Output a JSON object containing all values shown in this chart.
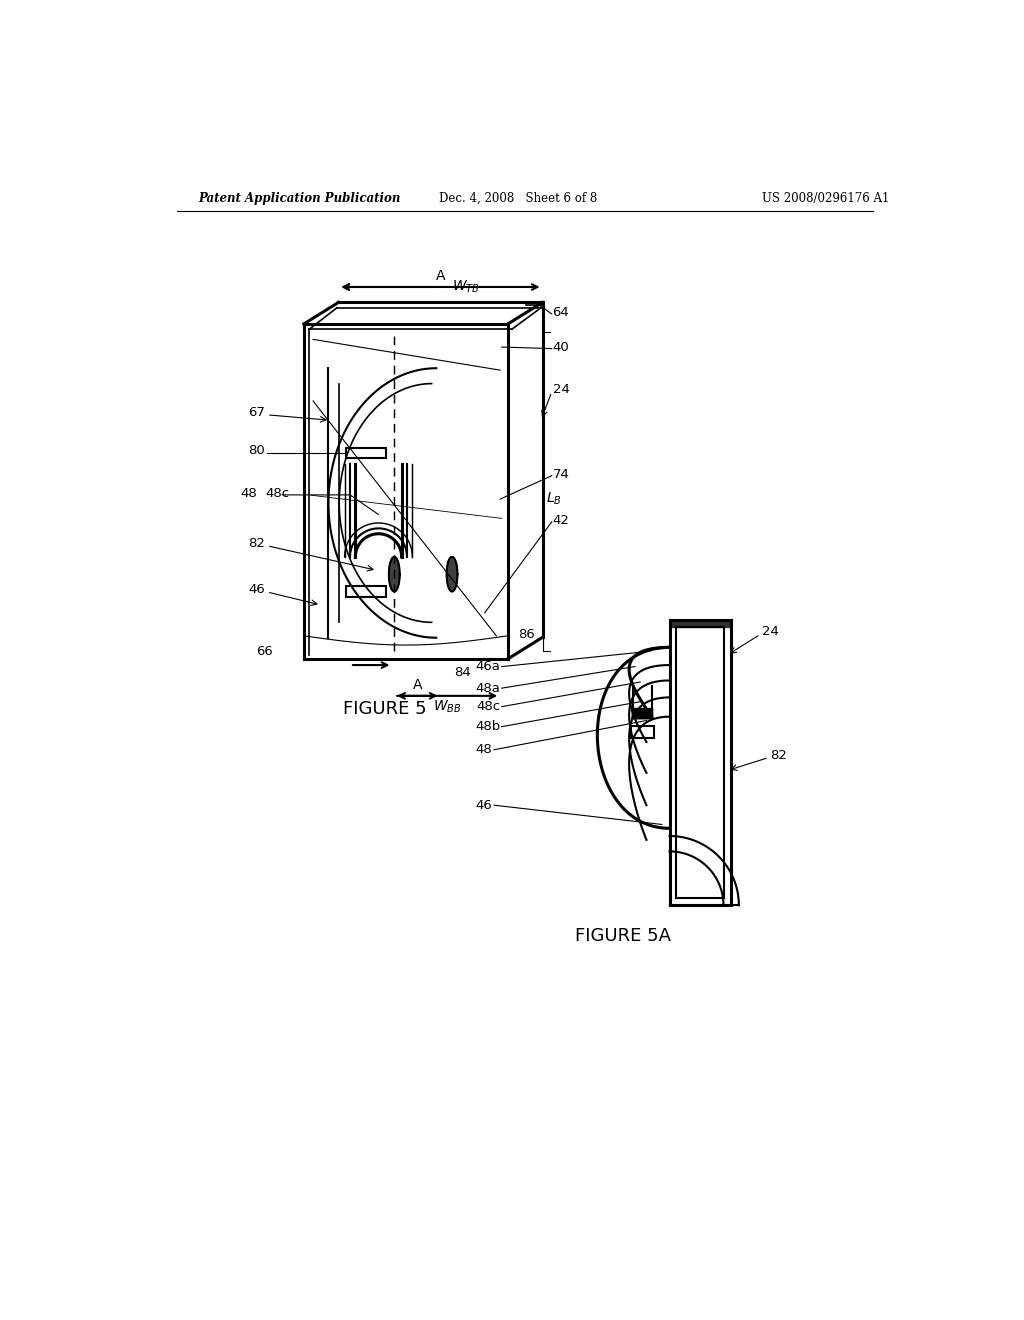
{
  "bg_color": "#ffffff",
  "header_left": "Patent Application Publication",
  "header_mid": "Dec. 4, 2008   Sheet 6 of 8",
  "header_right": "US 2008/0296176 A1",
  "fig5_caption": "FIGURE 5",
  "fig5a_caption": "FIGURE 5A"
}
